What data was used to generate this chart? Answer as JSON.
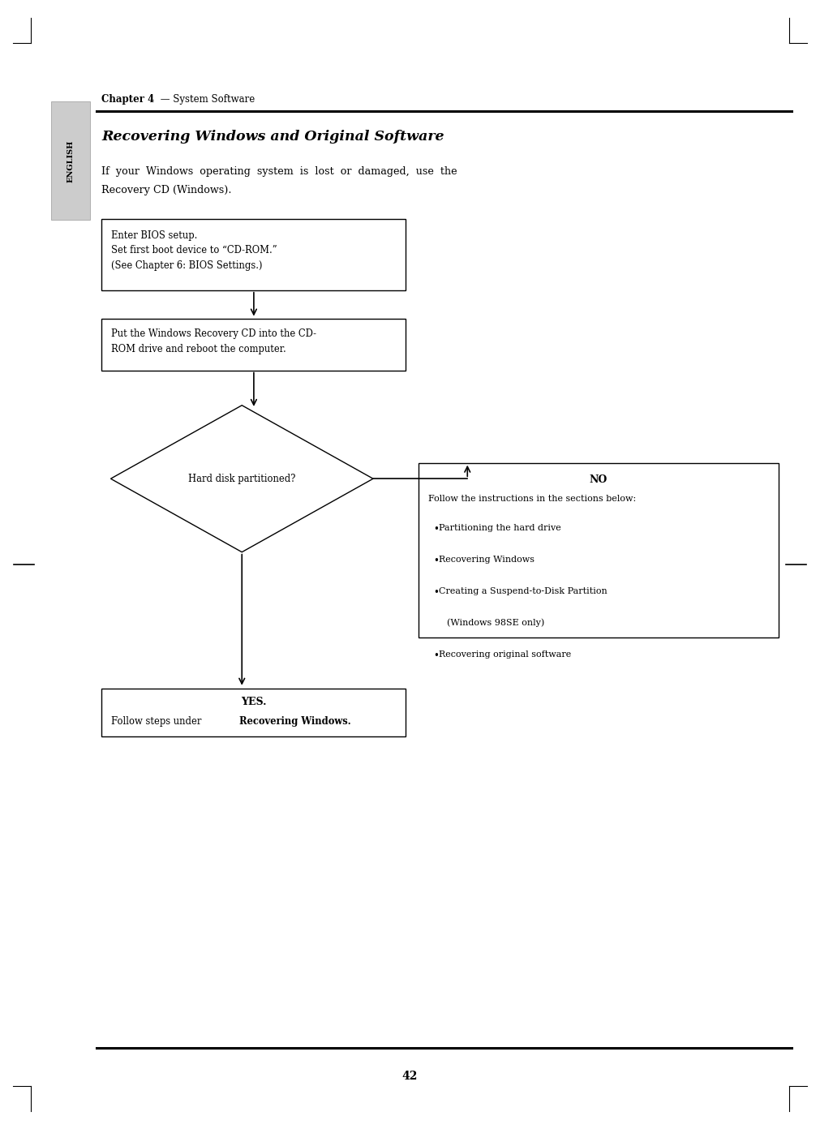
{
  "page_width": 10.11,
  "page_height": 13.92,
  "bg_color": "#ffffff",
  "chapter_label": "Chapter 4",
  "chapter_subtitle": " — System Software",
  "section_title": "Recovering Windows and Original Software",
  "intro_line1": "If  your  Windows  operating  system  is  lost  or  damaged,  use  the",
  "intro_line2": "Recovery CD (Windows).",
  "english_tab_text": "ENGLISH",
  "english_tab_color": "#cccccc",
  "page_number": "42",
  "box1_text": "Enter BIOS setup.\nSet first boot device to “CD-ROM.”\n(See Chapter 6: BIOS Settings.)",
  "box2_text": "Put the Windows Recovery CD into the CD-\nROM drive and reboot the computer.",
  "diamond_text": "Hard disk partitioned?",
  "no_box_title": "NO",
  "no_box_body_line0": "Follow the instructions in the sections below:",
  "no_box_bullet1": "Partitioning the hard drive",
  "no_box_bullet2": "Recovering Windows",
  "no_box_bullet3": "Creating a Suspend-to-Disk Partition",
  "no_box_bullet3b": "(Windows 98SE only)",
  "no_box_bullet4": "Recovering original software",
  "yes_box_title": "YES.",
  "yes_box_body_plain": "Follow steps under ",
  "yes_box_body_bold": "Recovering Windows.",
  "flow_color": "#000000",
  "box_edge_color": "#000000",
  "font_family": "DejaVu Serif"
}
